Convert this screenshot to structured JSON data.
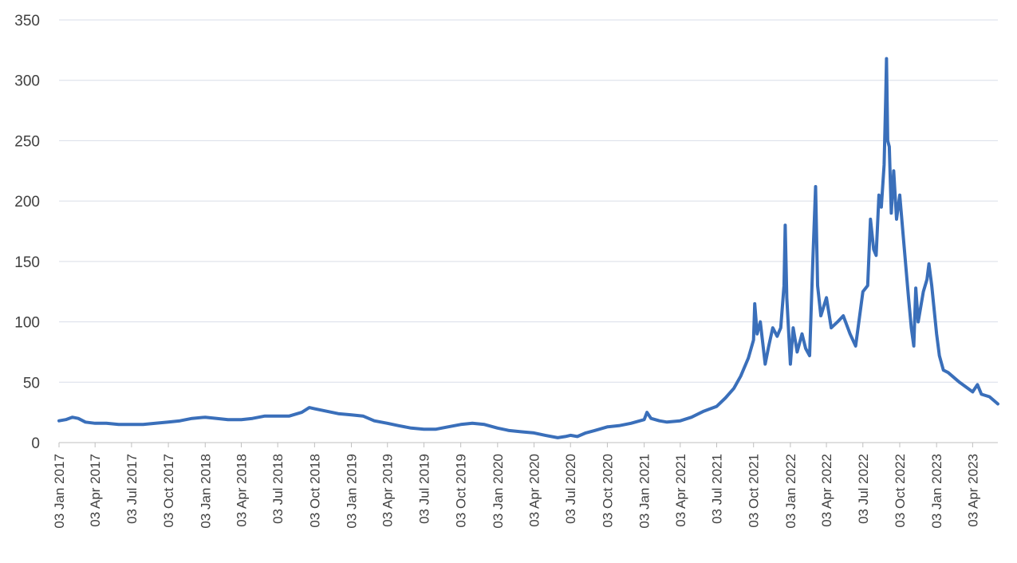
{
  "chart_data": {
    "type": "line",
    "title": "",
    "xlabel": "",
    "ylabel": "",
    "ylim": [
      0,
      350
    ],
    "yticks": [
      0,
      50,
      100,
      150,
      200,
      250,
      300,
      350
    ],
    "grid": "horizontal",
    "legend": "none",
    "line_color": "#3a6fba",
    "xlim": [
      "2017-01-03",
      "2023-06-05"
    ],
    "xtick_labels": [
      {
        "date": "2017-01-03",
        "label": "03 Jan 2017"
      },
      {
        "date": "2017-04-03",
        "label": "03 Apr 2017"
      },
      {
        "date": "2017-07-03",
        "label": "03 Jul 2017"
      },
      {
        "date": "2017-10-03",
        "label": "03 Oct 2017"
      },
      {
        "date": "2018-01-03",
        "label": "03 Jan 2018"
      },
      {
        "date": "2018-04-03",
        "label": "03 Apr 2018"
      },
      {
        "date": "2018-07-03",
        "label": "03 Jul 2018"
      },
      {
        "date": "2018-10-03",
        "label": "03 Oct 2018"
      },
      {
        "date": "2019-01-03",
        "label": "03 Jan 2019"
      },
      {
        "date": "2019-04-03",
        "label": "03 Apr 2019"
      },
      {
        "date": "2019-07-03",
        "label": "03 Jul 2019"
      },
      {
        "date": "2019-10-03",
        "label": "03 Oct 2019"
      },
      {
        "date": "2020-01-03",
        "label": "03 Jan 2020"
      },
      {
        "date": "2020-04-03",
        "label": "03 Apr 2020"
      },
      {
        "date": "2020-07-03",
        "label": "03 Jul 2020"
      },
      {
        "date": "2020-10-03",
        "label": "03 Oct 2020"
      },
      {
        "date": "2021-01-03",
        "label": "03 Jan 2021"
      },
      {
        "date": "2021-04-03",
        "label": "03 Apr 2021"
      },
      {
        "date": "2021-07-03",
        "label": "03 Jul 2021"
      },
      {
        "date": "2021-10-03",
        "label": "03 Oct 2021"
      },
      {
        "date": "2022-01-03",
        "label": "03 Jan 2022"
      },
      {
        "date": "2022-04-03",
        "label": "03 Apr 2022"
      },
      {
        "date": "2022-07-03",
        "label": "03 Jul 2022"
      },
      {
        "date": "2022-10-03",
        "label": "03 Oct 2022"
      },
      {
        "date": "2023-01-03",
        "label": "03 Jan 2023"
      },
      {
        "date": "2023-04-03",
        "label": "03 Apr 2023"
      }
    ],
    "series": [
      {
        "points": [
          [
            "2017-01-03",
            18
          ],
          [
            "2017-01-20",
            19
          ],
          [
            "2017-02-05",
            21
          ],
          [
            "2017-02-20",
            20
          ],
          [
            "2017-03-10",
            17
          ],
          [
            "2017-04-03",
            16
          ],
          [
            "2017-05-01",
            16
          ],
          [
            "2017-06-01",
            15
          ],
          [
            "2017-07-03",
            15
          ],
          [
            "2017-08-01",
            15
          ],
          [
            "2017-09-01",
            16
          ],
          [
            "2017-10-03",
            17
          ],
          [
            "2017-11-01",
            18
          ],
          [
            "2017-12-01",
            20
          ],
          [
            "2018-01-03",
            21
          ],
          [
            "2018-02-01",
            20
          ],
          [
            "2018-03-01",
            19
          ],
          [
            "2018-04-03",
            19
          ],
          [
            "2018-05-01",
            20
          ],
          [
            "2018-06-01",
            22
          ],
          [
            "2018-07-03",
            22
          ],
          [
            "2018-08-01",
            22
          ],
          [
            "2018-09-01",
            25
          ],
          [
            "2018-09-20",
            29
          ],
          [
            "2018-10-03",
            28
          ],
          [
            "2018-11-01",
            26
          ],
          [
            "2018-12-01",
            24
          ],
          [
            "2019-01-03",
            23
          ],
          [
            "2019-02-01",
            22
          ],
          [
            "2019-03-01",
            18
          ],
          [
            "2019-04-03",
            16
          ],
          [
            "2019-05-01",
            14
          ],
          [
            "2019-06-01",
            12
          ],
          [
            "2019-07-03",
            11
          ],
          [
            "2019-08-01",
            11
          ],
          [
            "2019-09-01",
            13
          ],
          [
            "2019-10-03",
            15
          ],
          [
            "2019-11-01",
            16
          ],
          [
            "2019-12-01",
            15
          ],
          [
            "2020-01-03",
            12
          ],
          [
            "2020-02-01",
            10
          ],
          [
            "2020-03-01",
            9
          ],
          [
            "2020-04-03",
            8
          ],
          [
            "2020-05-01",
            6
          ],
          [
            "2020-06-01",
            4
          ],
          [
            "2020-06-20",
            5
          ],
          [
            "2020-07-03",
            6
          ],
          [
            "2020-07-20",
            5
          ],
          [
            "2020-08-10",
            8
          ],
          [
            "2020-09-01",
            10
          ],
          [
            "2020-10-03",
            13
          ],
          [
            "2020-11-01",
            14
          ],
          [
            "2020-12-01",
            16
          ],
          [
            "2021-01-03",
            19
          ],
          [
            "2021-01-10",
            25
          ],
          [
            "2021-01-20",
            20
          ],
          [
            "2021-02-10",
            18
          ],
          [
            "2021-03-01",
            17
          ],
          [
            "2021-04-03",
            18
          ],
          [
            "2021-05-01",
            21
          ],
          [
            "2021-06-01",
            26
          ],
          [
            "2021-07-03",
            30
          ],
          [
            "2021-07-25",
            37
          ],
          [
            "2021-08-15",
            45
          ],
          [
            "2021-09-01",
            55
          ],
          [
            "2021-09-20",
            70
          ],
          [
            "2021-10-03",
            85
          ],
          [
            "2021-10-06",
            115
          ],
          [
            "2021-10-12",
            90
          ],
          [
            "2021-10-20",
            100
          ],
          [
            "2021-11-01",
            65
          ],
          [
            "2021-11-10",
            80
          ],
          [
            "2021-11-20",
            95
          ],
          [
            "2021-12-01",
            88
          ],
          [
            "2021-12-10",
            95
          ],
          [
            "2021-12-18",
            130
          ],
          [
            "2021-12-21",
            180
          ],
          [
            "2021-12-25",
            120
          ],
          [
            "2022-01-03",
            65
          ],
          [
            "2022-01-10",
            95
          ],
          [
            "2022-01-20",
            75
          ],
          [
            "2022-02-01",
            90
          ],
          [
            "2022-02-10",
            78
          ],
          [
            "2022-02-20",
            72
          ],
          [
            "2022-02-28",
            150
          ],
          [
            "2022-03-07",
            212
          ],
          [
            "2022-03-12",
            130
          ],
          [
            "2022-03-20",
            105
          ],
          [
            "2022-04-03",
            120
          ],
          [
            "2022-04-15",
            95
          ],
          [
            "2022-05-01",
            100
          ],
          [
            "2022-05-15",
            105
          ],
          [
            "2022-06-01",
            90
          ],
          [
            "2022-06-15",
            80
          ],
          [
            "2022-07-03",
            125
          ],
          [
            "2022-07-15",
            130
          ],
          [
            "2022-07-22",
            185
          ],
          [
            "2022-07-30",
            160
          ],
          [
            "2022-08-05",
            155
          ],
          [
            "2022-08-12",
            205
          ],
          [
            "2022-08-18",
            195
          ],
          [
            "2022-08-25",
            230
          ],
          [
            "2022-08-29",
            285
          ],
          [
            "2022-08-31",
            318
          ],
          [
            "2022-09-03",
            250
          ],
          [
            "2022-09-07",
            245
          ],
          [
            "2022-09-12",
            190
          ],
          [
            "2022-09-18",
            225
          ],
          [
            "2022-09-25",
            185
          ],
          [
            "2022-10-03",
            205
          ],
          [
            "2022-10-12",
            170
          ],
          [
            "2022-10-25",
            120
          ],
          [
            "2022-11-01",
            95
          ],
          [
            "2022-11-07",
            80
          ],
          [
            "2022-11-12",
            128
          ],
          [
            "2022-11-18",
            100
          ],
          [
            "2022-12-01",
            125
          ],
          [
            "2022-12-10",
            135
          ],
          [
            "2022-12-15",
            148
          ],
          [
            "2022-12-22",
            130
          ],
          [
            "2023-01-03",
            90
          ],
          [
            "2023-01-10",
            72
          ],
          [
            "2023-01-20",
            60
          ],
          [
            "2023-02-01",
            58
          ],
          [
            "2023-03-01",
            50
          ],
          [
            "2023-04-03",
            42
          ],
          [
            "2023-04-15",
            48
          ],
          [
            "2023-04-25",
            40
          ],
          [
            "2023-05-15",
            38
          ],
          [
            "2023-06-05",
            32
          ]
        ]
      }
    ]
  }
}
